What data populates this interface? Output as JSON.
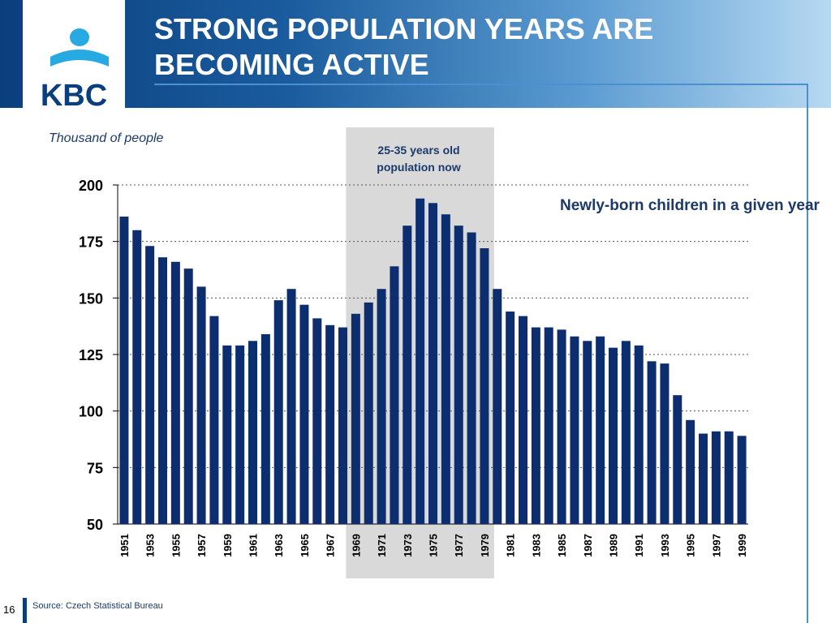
{
  "slide": {
    "title_line1": "STRONG POPULATION YEARS ARE",
    "title_line2": "BECOMING ACTIVE",
    "logo_text": "KBC",
    "page_number": "16",
    "source": "Source: Czech Statistical Bureau",
    "colors": {
      "banner_dark": "#0a3f7e",
      "banner_light": "#b7d9f2",
      "bar": "#0d2e6e",
      "highlight": "#d9d9d9",
      "text": "#1b3a6b"
    }
  },
  "chart_data": {
    "type": "bar",
    "ylabel": "Thousand of people",
    "ylim": [
      50,
      200
    ],
    "yticks": [
      50,
      75,
      100,
      125,
      150,
      175,
      200
    ],
    "grid": true,
    "categories": [
      "1951",
      "1952",
      "1953",
      "1954",
      "1955",
      "1956",
      "1957",
      "1958",
      "1959",
      "1960",
      "1961",
      "1962",
      "1963",
      "1964",
      "1965",
      "1966",
      "1967",
      "1968",
      "1969",
      "1970",
      "1971",
      "1972",
      "1973",
      "1974",
      "1975",
      "1976",
      "1977",
      "1978",
      "1979",
      "1980",
      "1981",
      "1982",
      "1983",
      "1984",
      "1985",
      "1986",
      "1987",
      "1988",
      "1989",
      "1990",
      "1991",
      "1992",
      "1993",
      "1994",
      "1995",
      "1996",
      "1997",
      "1998",
      "1999"
    ],
    "tick_labels": [
      "1951",
      "1953",
      "1955",
      "1957",
      "1959",
      "1961",
      "1963",
      "1965",
      "1967",
      "1969",
      "1971",
      "1973",
      "1975",
      "1977",
      "1979",
      "1981",
      "1983",
      "1985",
      "1987",
      "1989",
      "1991",
      "1993",
      "1995",
      "1997",
      "1999"
    ],
    "series": [
      {
        "name": "Newly-born children in a given year",
        "values": [
          186,
          180,
          173,
          168,
          166,
          163,
          155,
          142,
          129,
          129,
          131,
          134,
          149,
          154,
          147,
          141,
          138,
          137,
          143,
          148,
          154,
          164,
          182,
          194,
          192,
          187,
          182,
          179,
          172,
          154,
          144,
          142,
          137,
          137,
          136,
          133,
          131,
          133,
          128,
          131,
          129,
          122,
          121,
          107,
          96,
          90,
          91,
          91,
          89
        ]
      }
    ],
    "highlight": {
      "from": "1969",
      "to": "1979",
      "label_line1": "25-35 years old",
      "label_line2": "population now"
    }
  }
}
